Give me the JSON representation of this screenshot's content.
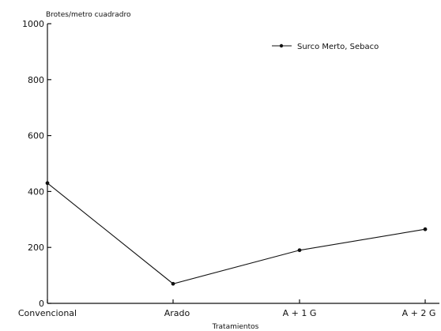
{
  "chart_data": {
    "type": "line",
    "categories": [
      "Convencional",
      "Arado",
      "A + 1 G",
      "A + 2 G"
    ],
    "series": [
      {
        "name": "Surco Merto, Sebaco",
        "values": [
          430,
          70,
          190,
          265
        ]
      }
    ],
    "ylabel": "Brotes/metro cuadradro",
    "xlabel": "Tratamientos",
    "ylim": [
      0,
      1000
    ],
    "yticks": [
      0,
      200,
      400,
      600,
      800,
      1000
    ],
    "legend_position": "top-right",
    "grid": false,
    "line_color": "#111111"
  }
}
